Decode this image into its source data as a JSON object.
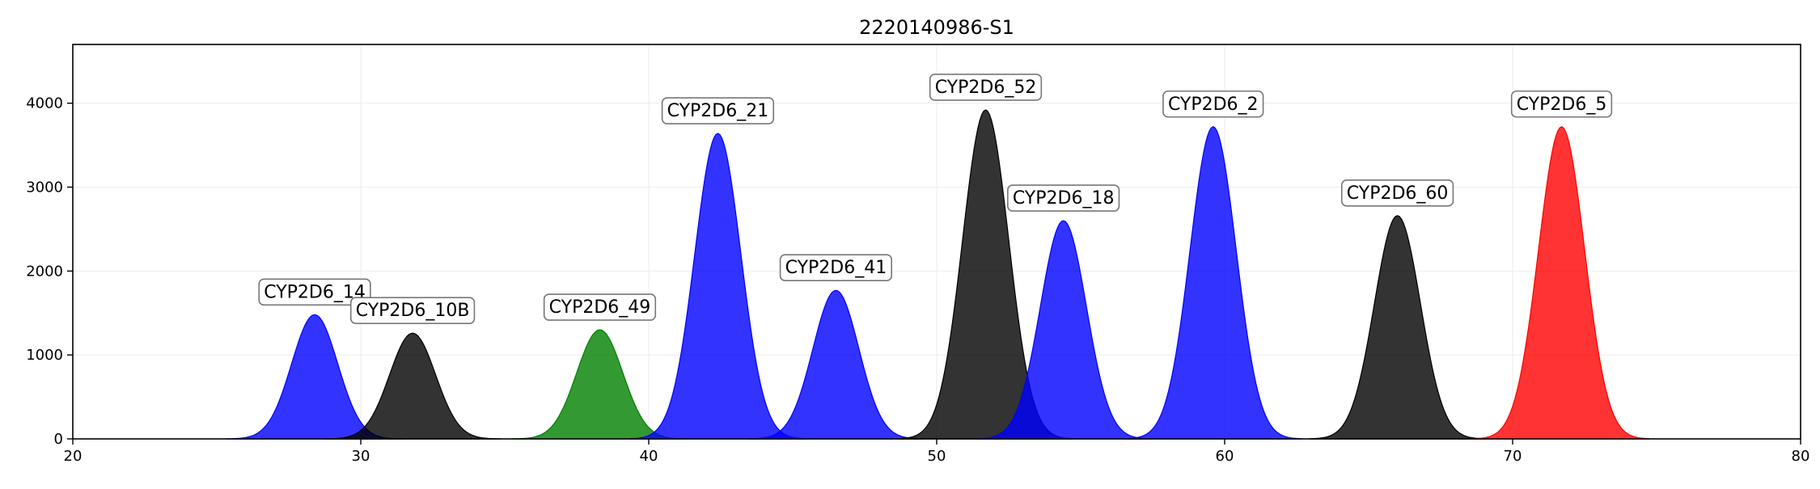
{
  "chart_data": {
    "type": "area",
    "title": "2220140986-S1",
    "xlabel": "",
    "ylabel": "",
    "xlim": [
      20,
      80
    ],
    "ylim": [
      0,
      4700
    ],
    "xticks": [
      20,
      30,
      40,
      50,
      60,
      70,
      80
    ],
    "yticks": [
      0,
      1000,
      2000,
      3000,
      4000
    ],
    "grid": true,
    "legend": "none",
    "peak_sigma": 0.8,
    "series": [
      {
        "label": "CYP2D6_14",
        "center": 28.4,
        "height": 1480,
        "color": "#0000ff"
      },
      {
        "label": "CYP2D6_10B",
        "center": 31.8,
        "height": 1260,
        "color": "#000000"
      },
      {
        "label": "CYP2D6_49",
        "center": 38.3,
        "height": 1300,
        "color": "#008000"
      },
      {
        "label": "CYP2D6_21",
        "center": 42.4,
        "height": 3640,
        "color": "#0000ff"
      },
      {
        "label": "CYP2D6_41",
        "center": 46.5,
        "height": 1770,
        "color": "#0000ff"
      },
      {
        "label": "CYP2D6_52",
        "center": 51.7,
        "height": 3920,
        "color": "#000000"
      },
      {
        "label": "CYP2D6_18",
        "center": 54.4,
        "height": 2600,
        "color": "#0000ff"
      },
      {
        "label": "CYP2D6_2",
        "center": 59.6,
        "height": 3720,
        "color": "#0000ff"
      },
      {
        "label": "CYP2D6_60",
        "center": 66.0,
        "height": 2660,
        "color": "#000000"
      },
      {
        "label": "CYP2D6_5",
        "center": 71.7,
        "height": 3720,
        "color": "#ff0000"
      }
    ]
  }
}
